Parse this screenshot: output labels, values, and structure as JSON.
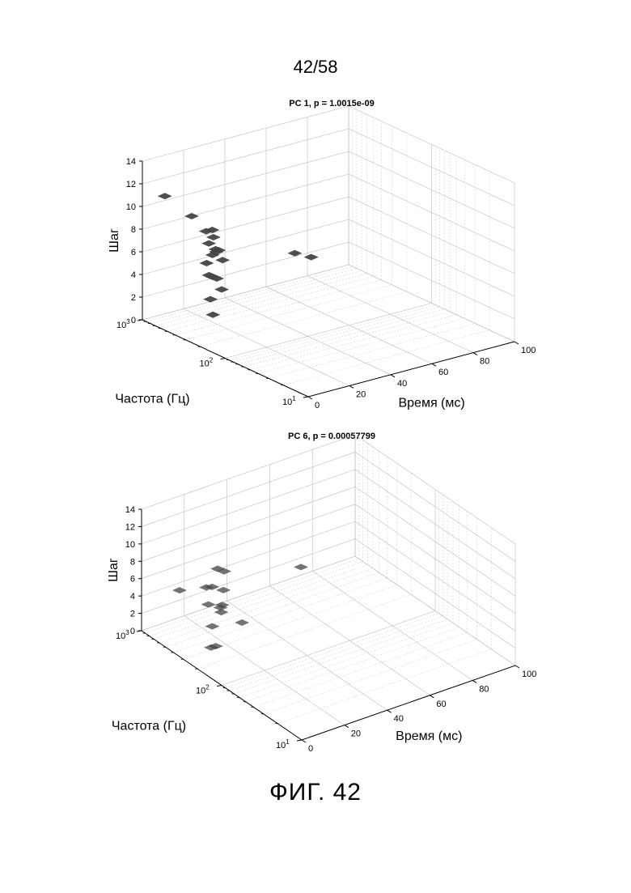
{
  "page": {
    "number": "42/58",
    "caption": "ФИГ. 42"
  },
  "colors": {
    "axis": "#000000",
    "grid": "#bdbdbd",
    "blob_dark": "#444444"
  },
  "chart_data": [
    {
      "type": "scatter",
      "title": "PC 1, p = 1.0015e-09",
      "xlabel": "Время (мс)",
      "ylabel": "Частота (Гц)",
      "zlabel": "Шаг",
      "x_ticks": [
        "0",
        "20",
        "40",
        "60",
        "80",
        "100"
      ],
      "y_tick_exponents": [
        "1",
        "2",
        "3"
      ],
      "z_ticks": [
        "0",
        "2",
        "4",
        "6",
        "8",
        "10",
        "12",
        "14"
      ],
      "xlim": [
        0,
        100
      ],
      "ylim": [
        10,
        1000
      ],
      "y_scale": "log",
      "zlim": [
        0,
        14
      ],
      "grid": true,
      "points": [
        {
          "x": 10,
          "y": 950,
          "z": 10.5
        },
        {
          "x": 20,
          "y": 800,
          "z": 8.5
        },
        {
          "x": 22,
          "y": 600,
          "z": 7.5
        },
        {
          "x": 24,
          "y": 550,
          "z": 7.0
        },
        {
          "x": 16,
          "y": 420,
          "z": 5.5
        },
        {
          "x": 14,
          "y": 350,
          "z": 4.8
        },
        {
          "x": 18,
          "y": 400,
          "z": 6.2
        },
        {
          "x": 26,
          "y": 700,
          "z": 6.0
        },
        {
          "x": 28,
          "y": 650,
          "z": 5.5
        },
        {
          "x": 30,
          "y": 800,
          "z": 6.8
        },
        {
          "x": 32,
          "y": 750,
          "z": 5.0
        },
        {
          "x": 20,
          "y": 450,
          "z": 4.0
        },
        {
          "x": 24,
          "y": 500,
          "z": 3.5
        },
        {
          "x": 28,
          "y": 550,
          "z": 2.2
        },
        {
          "x": 12,
          "y": 300,
          "z": 3.0
        },
        {
          "x": 10,
          "y": 250,
          "z": 2.0
        },
        {
          "x": 34,
          "y": 900,
          "z": 4.5
        },
        {
          "x": 38,
          "y": 950,
          "z": 3.5
        },
        {
          "x": 70,
          "y": 800,
          "z": 2.8
        },
        {
          "x": 80,
          "y": 900,
          "z": 1.8
        }
      ]
    },
    {
      "type": "scatter",
      "title": "PC 6, p = 0.00057799",
      "xlabel": "Время (мс)",
      "ylabel": "Частота (Гц)",
      "zlabel": "Шаг",
      "x_ticks": [
        "0",
        "20",
        "40",
        "60",
        "80",
        "100"
      ],
      "y_tick_exponents": [
        "1",
        "2",
        "3"
      ],
      "z_ticks": [
        "0",
        "2",
        "4",
        "6",
        "8",
        "10",
        "12",
        "14"
      ],
      "xlim": [
        0,
        100
      ],
      "ylim": [
        10,
        1000
      ],
      "y_scale": "log",
      "zlim": [
        0,
        14
      ],
      "grid": true,
      "points": [
        {
          "x": 12,
          "y": 700,
          "z": 4.6
        },
        {
          "x": 22,
          "y": 600,
          "z": 4.5
        },
        {
          "x": 26,
          "y": 650,
          "z": 4.0
        },
        {
          "x": 20,
          "y": 500,
          "z": 3.2
        },
        {
          "x": 24,
          "y": 450,
          "z": 2.8
        },
        {
          "x": 28,
          "y": 550,
          "z": 2.2
        },
        {
          "x": 26,
          "y": 500,
          "z": 1.8
        },
        {
          "x": 30,
          "y": 600,
          "z": 3.5
        },
        {
          "x": 16,
          "y": 350,
          "z": 2.0
        },
        {
          "x": 10,
          "y": 250,
          "z": 1.0
        },
        {
          "x": 14,
          "y": 280,
          "z": 0.5
        },
        {
          "x": 32,
          "y": 800,
          "z": 5.0
        },
        {
          "x": 36,
          "y": 850,
          "z": 4.2
        },
        {
          "x": 34,
          "y": 450,
          "z": 0.2
        },
        {
          "x": 72,
          "y": 850,
          "z": 1.6
        }
      ]
    }
  ]
}
